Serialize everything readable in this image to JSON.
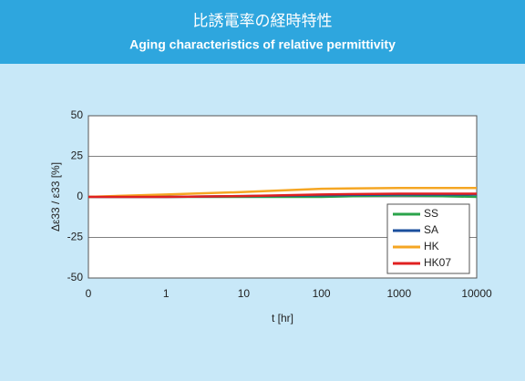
{
  "chart_data": {
    "type": "line",
    "title": "比誘電率の経時特性",
    "subtitle": "Aging characteristics of relative permittivity",
    "x_label": "t [hr]",
    "y_label": "Δε33 / ε33 [%]",
    "categories": [
      "0",
      "1",
      "10",
      "100",
      "1000",
      "10000"
    ],
    "series": [
      {
        "name": "SS",
        "color": "#2aa34a",
        "values": [
          0,
          0,
          0,
          0,
          1,
          0
        ]
      },
      {
        "name": "SA",
        "color": "#1b4f9c",
        "values": [
          0,
          0,
          0.5,
          1,
          1.5,
          1.5
        ]
      },
      {
        "name": "HK",
        "color": "#f5a623",
        "values": [
          0,
          1.5,
          3,
          5,
          5.5,
          5.5
        ]
      },
      {
        "name": "HK07",
        "color": "#e02020",
        "values": [
          0,
          0,
          0.5,
          1.5,
          2,
          2
        ]
      }
    ],
    "ylim": [
      -50,
      50
    ],
    "yticks": [
      -50,
      -25,
      0,
      25,
      50
    ],
    "grid": true,
    "legend": "lower right"
  }
}
